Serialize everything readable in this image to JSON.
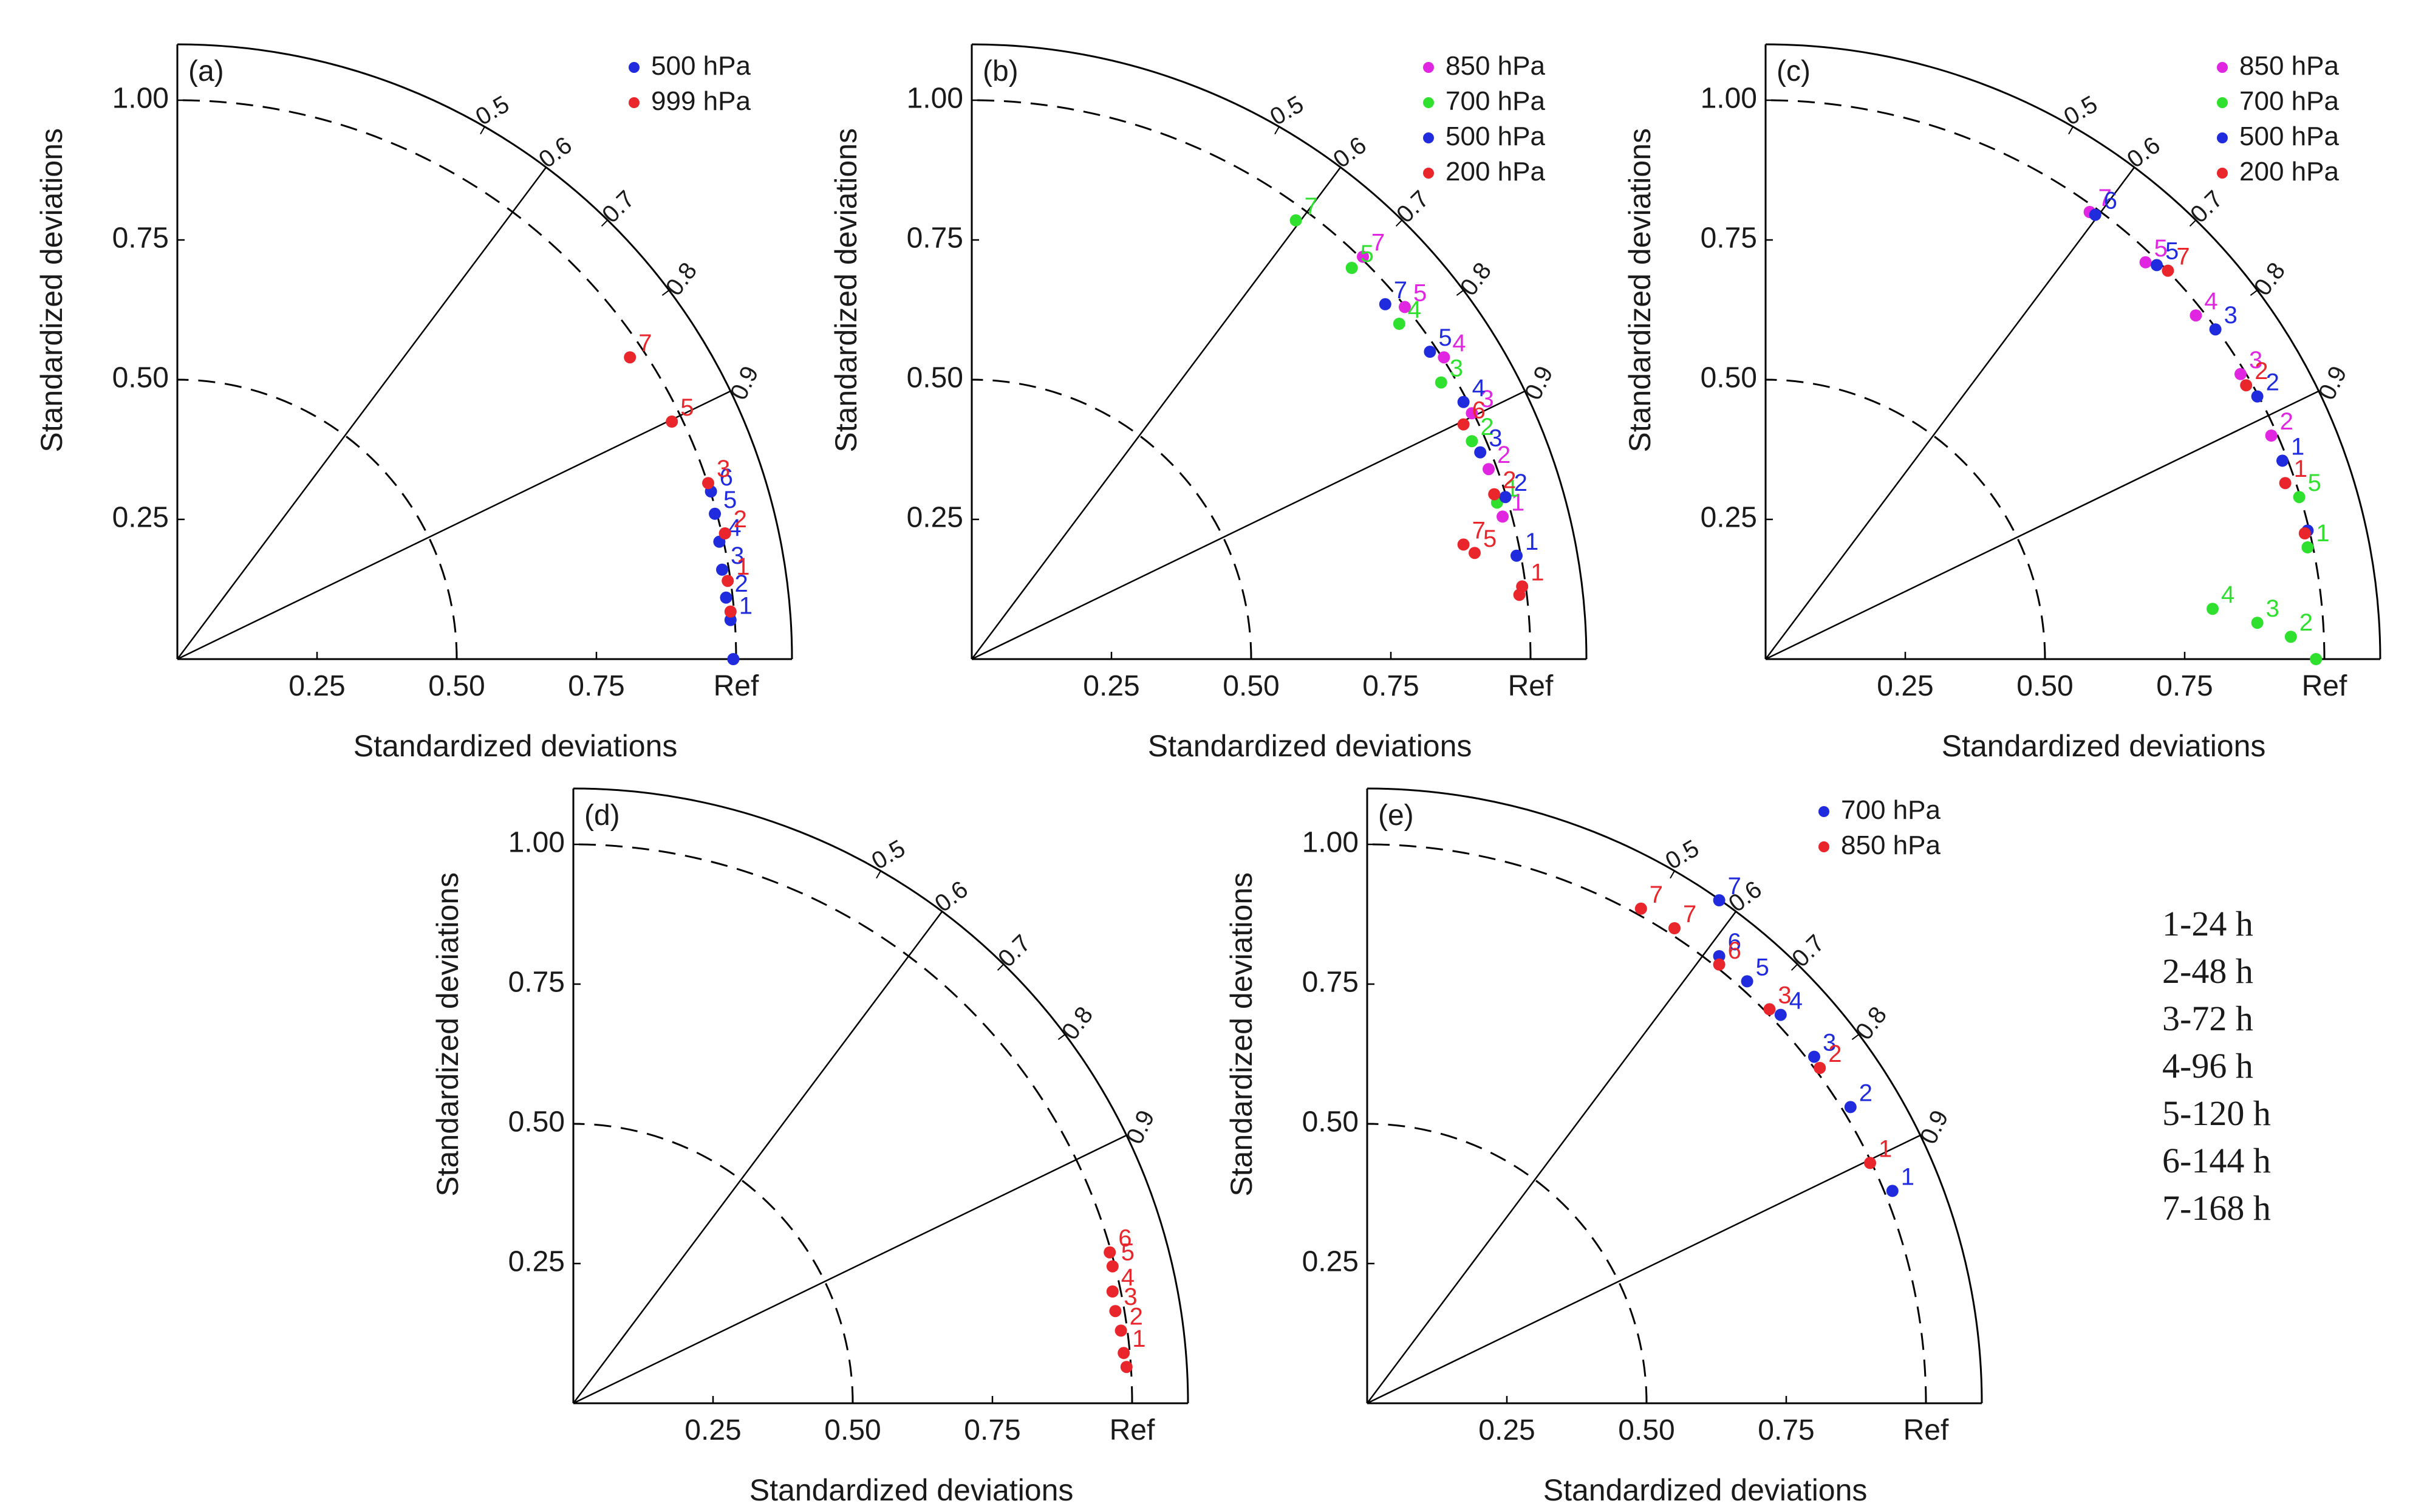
{
  "figure_note": {
    "lines": [
      "1-24 h",
      "2-48 h",
      "3-72 h",
      "4-96 h",
      "5-120 h",
      "6-144 h",
      "7-168 h"
    ]
  },
  "chart_data": [
    {
      "type": "scatter",
      "subtype": "taylor-diagram",
      "panel_label": "(a)",
      "xlabel": "Standardized deviations",
      "ylabel": "Standardized deviations",
      "ref_label": "Ref",
      "std_ticks": [
        "0.25",
        "0.50",
        "0.75",
        "1.00"
      ],
      "corr_ticks": [
        0.5,
        0.6,
        0.7,
        0.8,
        0.9
      ],
      "corr_lines": [
        0.6,
        0.9
      ],
      "std_arcs": [
        0.5,
        1.0
      ],
      "max_std": 1.1,
      "legend_position": "top-right",
      "series": [
        {
          "name": "500 hPa",
          "color": "#1f2bdc",
          "points": [
            [
              0.955,
              0.3,
              "6"
            ],
            [
              0.962,
              0.26,
              "5"
            ],
            [
              0.97,
              0.21,
              "4"
            ],
            [
              0.975,
              0.16,
              "3"
            ],
            [
              0.982,
              0.11,
              "2"
            ],
            [
              0.99,
              0.07,
              "1"
            ],
            [
              0.995,
              0.0,
              ""
            ]
          ]
        },
        {
          "name": "999 hPa",
          "color": "#e8262b",
          "points": [
            [
              0.81,
              0.54,
              "7"
            ],
            [
              0.885,
              0.425,
              "5"
            ],
            [
              0.95,
              0.315,
              "3"
            ],
            [
              0.98,
              0.225,
              "2"
            ],
            [
              0.985,
              0.14,
              "1"
            ],
            [
              0.99,
              0.085,
              ""
            ]
          ]
        }
      ]
    },
    {
      "type": "scatter",
      "subtype": "taylor-diagram",
      "panel_label": "(b)",
      "xlabel": "Standardized deviations",
      "ylabel": "Standardized deviations",
      "ref_label": "Ref",
      "std_ticks": [
        "0.25",
        "0.50",
        "0.75",
        "1.00"
      ],
      "corr_ticks": [
        0.5,
        0.6,
        0.7,
        0.8,
        0.9
      ],
      "corr_lines": [
        0.6,
        0.9
      ],
      "std_arcs": [
        0.5,
        1.0
      ],
      "max_std": 1.1,
      "legend_position": "top-right",
      "series": [
        {
          "name": "850 hPa",
          "color": "#e026e0",
          "points": [
            [
              0.7,
              0.72,
              "7"
            ],
            [
              0.775,
              0.63,
              "5"
            ],
            [
              0.845,
              0.54,
              "4"
            ],
            [
              0.895,
              0.44,
              "3"
            ],
            [
              0.925,
              0.34,
              "2"
            ],
            [
              0.95,
              0.255,
              "1"
            ]
          ]
        },
        {
          "name": "700 hPa",
          "color": "#2fe02f",
          "points": [
            [
              0.58,
              0.785,
              "7"
            ],
            [
              0.68,
              0.7,
              "5"
            ],
            [
              0.765,
              0.6,
              "4"
            ],
            [
              0.84,
              0.495,
              "3"
            ],
            [
              0.895,
              0.39,
              "2"
            ],
            [
              0.94,
              0.28,
              "1"
            ]
          ]
        },
        {
          "name": "500 hPa",
          "color": "#1f2bdc",
          "points": [
            [
              0.74,
              0.635,
              "7"
            ],
            [
              0.82,
              0.55,
              "5"
            ],
            [
              0.88,
              0.46,
              "4"
            ],
            [
              0.91,
              0.37,
              "3"
            ],
            [
              0.955,
              0.29,
              "2"
            ],
            [
              0.975,
              0.185,
              "1"
            ]
          ]
        },
        {
          "name": "200 hPa",
          "color": "#e8262b",
          "points": [
            [
              0.88,
              0.42,
              "6"
            ],
            [
              0.935,
              0.295,
              "2"
            ],
            [
              0.9,
              0.19,
              "5"
            ],
            [
              0.88,
              0.205,
              "7"
            ],
            [
              0.985,
              0.13,
              "1"
            ],
            [
              0.98,
              0.115,
              ""
            ]
          ]
        }
      ]
    },
    {
      "type": "scatter",
      "subtype": "taylor-diagram",
      "panel_label": "(c)",
      "xlabel": "Standardized deviations",
      "ylabel": "Standardized deviations",
      "ref_label": "Ref",
      "std_ticks": [
        "0.25",
        "0.50",
        "0.75",
        "1.00"
      ],
      "corr_ticks": [
        0.5,
        0.6,
        0.7,
        0.8,
        0.9
      ],
      "corr_lines": [
        0.6,
        0.9
      ],
      "std_arcs": [
        0.5,
        1.0
      ],
      "max_std": 1.1,
      "legend_position": "top-right",
      "series": [
        {
          "name": "850 hPa",
          "color": "#e026e0",
          "points": [
            [
              0.58,
              0.8,
              "7"
            ],
            [
              0.68,
              0.71,
              "5"
            ],
            [
              0.77,
              0.615,
              "4"
            ],
            [
              0.85,
              0.51,
              "3"
            ],
            [
              0.905,
              0.4,
              "2"
            ]
          ]
        },
        {
          "name": "700 hPa",
          "color": "#2fe02f",
          "points": [
            [
              0.97,
              0.2,
              "1"
            ],
            [
              0.94,
              0.04,
              "2"
            ],
            [
              0.88,
              0.065,
              "3"
            ],
            [
              0.8,
              0.09,
              "4"
            ],
            [
              0.985,
              0.0,
              ""
            ],
            [
              0.955,
              0.29,
              "5"
            ]
          ]
        },
        {
          "name": "500 hPa",
          "color": "#1f2bdc",
          "points": [
            [
              0.59,
              0.795,
              "6"
            ],
            [
              0.7,
              0.705,
              "5"
            ],
            [
              0.805,
              0.59,
              "3"
            ],
            [
              0.88,
              0.47,
              "2"
            ],
            [
              0.925,
              0.355,
              "1"
            ],
            [
              0.97,
              0.23,
              ""
            ]
          ]
        },
        {
          "name": "200 hPa",
          "color": "#e8262b",
          "points": [
            [
              0.72,
              0.695,
              "7"
            ],
            [
              0.86,
              0.49,
              "2"
            ],
            [
              0.93,
              0.315,
              "1"
            ],
            [
              0.965,
              0.225,
              ""
            ]
          ]
        }
      ]
    },
    {
      "type": "scatter",
      "subtype": "taylor-diagram",
      "panel_label": "(d)",
      "xlabel": "Standardized deviations",
      "ylabel": "Standardized deviations",
      "ref_label": "Ref",
      "std_ticks": [
        "0.25",
        "0.50",
        "0.75",
        "1.00"
      ],
      "corr_ticks": [
        0.5,
        0.6,
        0.7,
        0.8,
        0.9
      ],
      "corr_lines": [
        0.6,
        0.9
      ],
      "std_arcs": [
        0.5,
        1.0
      ],
      "max_std": 1.1,
      "legend_position": "",
      "series": [
        {
          "name": "",
          "color": "#e8262b",
          "points": [
            [
              0.96,
              0.27,
              "6"
            ],
            [
              0.965,
              0.245,
              "5"
            ],
            [
              0.965,
              0.2,
              "4"
            ],
            [
              0.97,
              0.165,
              "3"
            ],
            [
              0.98,
              0.13,
              "2"
            ],
            [
              0.985,
              0.09,
              "1"
            ],
            [
              0.99,
              0.065,
              ""
            ]
          ]
        }
      ]
    },
    {
      "type": "scatter",
      "subtype": "taylor-diagram",
      "panel_label": "(e)",
      "xlabel": "Standardized deviations",
      "ylabel": "Standardized deviations",
      "ref_label": "Ref",
      "std_ticks": [
        "0.25",
        "0.50",
        "0.75",
        "1.00"
      ],
      "corr_ticks": [
        0.5,
        0.6,
        0.7,
        0.8,
        0.9
      ],
      "corr_lines": [
        0.6,
        0.9
      ],
      "std_arcs": [
        0.5,
        1.0
      ],
      "max_std": 1.1,
      "legend_position": "top-right",
      "series": [
        {
          "name": "700 hPa",
          "color": "#1f2bdc",
          "points": [
            [
              0.63,
              0.9,
              "7"
            ],
            [
              0.63,
              0.8,
              "6"
            ],
            [
              0.68,
              0.755,
              "5"
            ],
            [
              0.74,
              0.695,
              "4"
            ],
            [
              0.8,
              0.62,
              "3"
            ],
            [
              0.865,
              0.53,
              "2"
            ],
            [
              0.94,
              0.38,
              "1"
            ]
          ]
        },
        {
          "name": "850 hPa",
          "color": "#e8262b",
          "points": [
            [
              0.49,
              0.885,
              "7"
            ],
            [
              0.55,
              0.85,
              "7"
            ],
            [
              0.63,
              0.785,
              "6"
            ],
            [
              0.72,
              0.705,
              "3"
            ],
            [
              0.81,
              0.6,
              "2"
            ],
            [
              0.9,
              0.43,
              "1"
            ]
          ]
        }
      ]
    }
  ]
}
